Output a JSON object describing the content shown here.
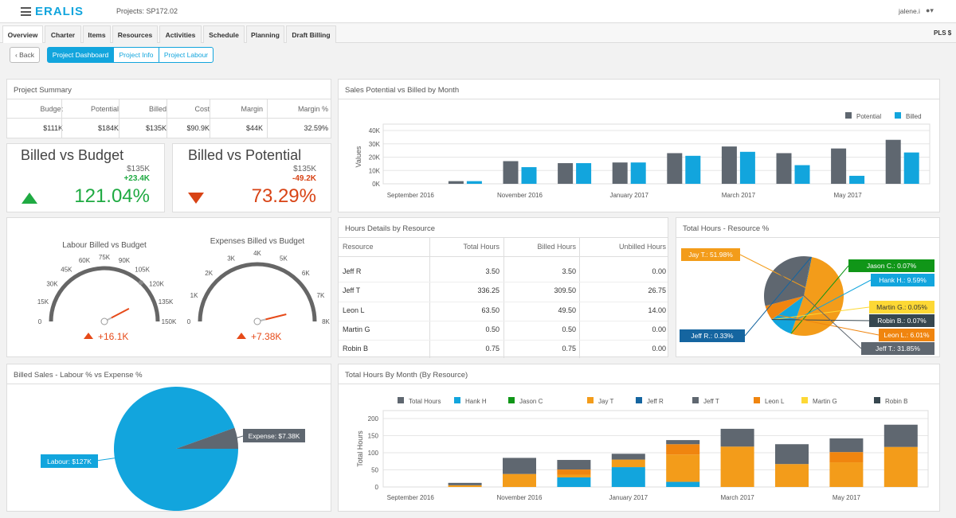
{
  "header": {
    "logo": "ERALIS",
    "project": "Projects: SP172.02",
    "user": "jalene.i",
    "user_icon": "person-icon"
  },
  "tabs": [
    "Overview",
    "Charter",
    "Items",
    "Resources",
    "Activities",
    "Schedule",
    "Planning",
    "Draft Billing"
  ],
  "pls": "PLS $",
  "toolbar": {
    "back": "Back",
    "dashboard": "Project Dashboard",
    "info": "Project Info",
    "labour": "Project Labour"
  },
  "summary": {
    "title": "Project Summary",
    "headers": [
      "Budget",
      "Potential",
      "Billed",
      "Cost",
      "Margin",
      "Margin %"
    ],
    "values": [
      "$111K",
      "$184K",
      "$135K",
      "$90.9K",
      "$44K",
      "32.59%"
    ]
  },
  "kpi1": {
    "title": "Billed vs Budget",
    "value": "$135K",
    "delta": "+23.4K",
    "pct": "121.04%"
  },
  "kpi2": {
    "title": "Billed vs Potential",
    "value": "$135K",
    "delta": "-49.2K",
    "pct": "73.29%"
  },
  "gauge1": {
    "title": "Labour Billed vs Budget",
    "ticks": [
      "0",
      "15K",
      "30K",
      "45K",
      "60K",
      "75K",
      "90K",
      "105K",
      "120K",
      "135K",
      "150K"
    ],
    "value": 127,
    "target": 111,
    "max": 150,
    "delta": "+16.1K"
  },
  "gauge2": {
    "title": "Expenses Billed vs Budget",
    "ticks": [
      "0",
      "1K",
      "2K",
      "3K",
      "4K",
      "5K",
      "6K",
      "7K",
      "8K"
    ],
    "value": 7.38,
    "max": 8,
    "delta": "+7.38K"
  },
  "sales_title": "Sales Potential vs Billed by Month",
  "hours_table": {
    "title": "Hours Details by Resource",
    "headers": [
      "Resource",
      "Total Hours",
      "Billed Hours",
      "Unbilled Hours"
    ],
    "rows": [
      [
        "Jeff R",
        "3.50",
        "3.50",
        "0.00"
      ],
      [
        "Jeff T",
        "336.25",
        "309.50",
        "26.75"
      ],
      [
        "Leon L",
        "63.50",
        "49.50",
        "14.00"
      ],
      [
        "Martin G",
        "0.50",
        "0.50",
        "0.00"
      ],
      [
        "Robin B",
        "0.75",
        "0.75",
        "0.00"
      ]
    ]
  },
  "pie_title": "Total Hours - Resource %",
  "labour_title": "Billed Sales - Labour % vs Expense %",
  "month_title": "Total Hours By Month (By Resource)",
  "chart_data": [
    {
      "type": "bar",
      "title": "Sales Potential vs Billed by Month",
      "ylabel": "Values",
      "ylim": [
        0,
        40000
      ],
      "yticks": [
        "0K",
        "10K",
        "20K",
        "30K",
        "40K"
      ],
      "categories": [
        "September 2016",
        "October 2016",
        "November 2016",
        "December 2016",
        "January 2017",
        "February 2017",
        "March 2017",
        "April 2017",
        "May 2017",
        "June 2017"
      ],
      "xtick_labels": [
        "September 2016",
        "November 2016",
        "January 2017",
        "March 2017",
        "May 2017"
      ],
      "series": [
        {
          "name": "Potential",
          "color": "#5f6770",
          "values": [
            0,
            2000,
            17000,
            15500,
            16000,
            23000,
            28000,
            23000,
            26500,
            33000
          ]
        },
        {
          "name": "Billed",
          "color": "#12a5dd",
          "values": [
            0,
            2000,
            12500,
            15500,
            16000,
            21000,
            24000,
            14000,
            6000,
            23500
          ]
        }
      ]
    },
    {
      "type": "pie",
      "title": "Total Hours - Resource %",
      "slices": [
        {
          "label": "Jay T.: 51.98%",
          "value": 51.98,
          "color": "#f39c1a"
        },
        {
          "label": "Jason C.: 0.07%",
          "value": 0.07,
          "color": "#109618"
        },
        {
          "label": "Hank H.: 9.59%",
          "value": 9.59,
          "color": "#12a5dd"
        },
        {
          "label": "Martin G.: 0.05%",
          "value": 0.05,
          "color": "#fdd835"
        },
        {
          "label": "Robin B.: 0.07%",
          "value": 0.07,
          "color": "#37474f"
        },
        {
          "label": "Leon L.: 6.01%",
          "value": 6.01,
          "color": "#f0850f"
        },
        {
          "label": "Jeff T.: 31.85%",
          "value": 31.85,
          "color": "#5f6770"
        },
        {
          "label": "Jeff R.: 0.33%",
          "value": 0.33,
          "color": "#1565a0"
        }
      ]
    },
    {
      "type": "pie",
      "title": "Billed Sales - Labour % vs Expense %",
      "slices": [
        {
          "label": "Labour: $127K",
          "value": 127,
          "color": "#12a5dd"
        },
        {
          "label": "Expense: $7.38K",
          "value": 7.38,
          "color": "#5f6770"
        }
      ]
    },
    {
      "type": "bar",
      "title": "Total Hours By Month (By Resource)",
      "ylabel": "Total Hours",
      "ylim": [
        0,
        200
      ],
      "yticks": [
        "0",
        "50",
        "100",
        "150",
        "200"
      ],
      "categories": [
        "September 2016",
        "October 2016",
        "November 2016",
        "December 2016",
        "January 2017",
        "February 2017",
        "March 2017",
        "April 2017",
        "May 2017",
        "June 2017"
      ],
      "xtick_labels": [
        "September 2016",
        "November 2016",
        "January 2017",
        "March 2017",
        "May 2017"
      ],
      "legend": [
        {
          "name": "Total Hours",
          "color": "#5f6770"
        },
        {
          "name": "Hank H",
          "color": "#12a5dd"
        },
        {
          "name": "Jason C",
          "color": "#109618"
        },
        {
          "name": "Jay T",
          "color": "#f39c1a"
        },
        {
          "name": "Jeff R",
          "color": "#1565a0"
        },
        {
          "name": "Jeff T",
          "color": "#5f6770"
        },
        {
          "name": "Leon L",
          "color": "#f0850f"
        },
        {
          "name": "Martin G",
          "color": "#fdd835"
        },
        {
          "name": "Robin B",
          "color": "#37474f"
        }
      ],
      "series": [
        {
          "name": "Hank H",
          "color": "#12a5dd",
          "values": [
            0,
            0,
            0,
            28,
            58,
            15,
            0,
            0,
            0,
            0
          ]
        },
        {
          "name": "Jay T",
          "color": "#f39c1a",
          "values": [
            0,
            5,
            38,
            8,
            22,
            80,
            118,
            67,
            72,
            117
          ]
        },
        {
          "name": "Leon L",
          "color": "#f0850f",
          "values": [
            0,
            0,
            0,
            15,
            0,
            30,
            0,
            0,
            30,
            0
          ]
        },
        {
          "name": "Jeff T",
          "color": "#5f6770",
          "values": [
            0,
            7,
            47,
            28,
            17,
            12,
            52,
            58,
            40,
            65
          ]
        },
        {
          "name": "Robin B",
          "color": "#37474f",
          "values": [
            0,
            0,
            0,
            0,
            0,
            0,
            0,
            0,
            0,
            0
          ]
        }
      ]
    }
  ]
}
